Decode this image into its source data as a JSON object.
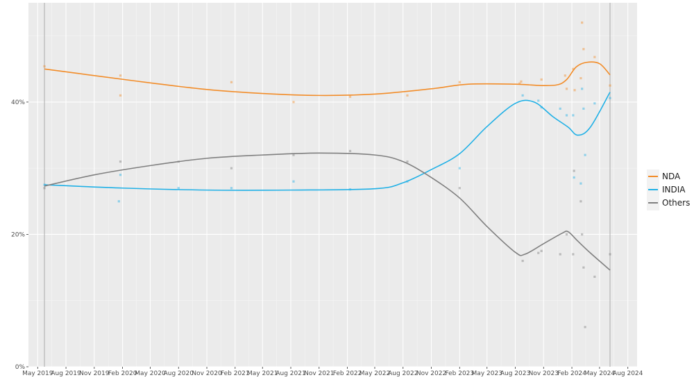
{
  "chart_data": {
    "type": "line",
    "title": "",
    "xlabel": "",
    "ylabel": "",
    "x_domain": [
      "2019-04-01",
      "2024-08-31"
    ],
    "ylim": [
      0,
      55
    ],
    "y_ticks": [
      {
        "value": 0,
        "label": "0%"
      },
      {
        "value": 20,
        "label": "20%"
      },
      {
        "value": 40,
        "label": "40%"
      }
    ],
    "x_ticks": [
      {
        "date": "2019-05-01",
        "label": "May 2019"
      },
      {
        "date": "2019-08-01",
        "label": "Aug 2019"
      },
      {
        "date": "2019-11-01",
        "label": "Nov 2019"
      },
      {
        "date": "2020-02-01",
        "label": "Feb 2020"
      },
      {
        "date": "2020-05-01",
        "label": "May 2020"
      },
      {
        "date": "2020-08-01",
        "label": "Aug 2020"
      },
      {
        "date": "2020-11-01",
        "label": "Nov 2020"
      },
      {
        "date": "2021-02-01",
        "label": "Feb 2021"
      },
      {
        "date": "2021-05-01",
        "label": "May 2021"
      },
      {
        "date": "2021-08-01",
        "label": "Aug 2021"
      },
      {
        "date": "2021-11-01",
        "label": "Nov 2021"
      },
      {
        "date": "2022-02-01",
        "label": "Feb 2022"
      },
      {
        "date": "2022-05-01",
        "label": "May 2022"
      },
      {
        "date": "2022-08-01",
        "label": "Aug 2022"
      },
      {
        "date": "2022-11-01",
        "label": "Nov 2022"
      },
      {
        "date": "2023-02-01",
        "label": "Feb 2023"
      },
      {
        "date": "2023-05-01",
        "label": "May 2023"
      },
      {
        "date": "2023-08-01",
        "label": "Aug 2023"
      },
      {
        "date": "2023-11-01",
        "label": "Nov 2023"
      },
      {
        "date": "2024-02-01",
        "label": "Feb 2024"
      },
      {
        "date": "2024-05-01",
        "label": "May 2024"
      },
      {
        "date": "2024-08-01",
        "label": "Aug 2024"
      }
    ],
    "grid": true,
    "legend_position": "right",
    "event_lines": [
      "2019-05-23",
      "2024-06-04"
    ],
    "series": [
      {
        "name": "NDA",
        "color": "#F28C28",
        "trend": [
          [
            "2019-05-23",
            45.0
          ],
          [
            "2019-11-01",
            44.0
          ],
          [
            "2020-05-01",
            42.9
          ],
          [
            "2020-11-01",
            41.9
          ],
          [
            "2021-05-01",
            41.3
          ],
          [
            "2021-11-01",
            41.0
          ],
          [
            "2022-05-01",
            41.2
          ],
          [
            "2022-11-01",
            42.0
          ],
          [
            "2023-03-01",
            42.7
          ],
          [
            "2023-08-01",
            42.7
          ],
          [
            "2023-10-20",
            42.5
          ],
          [
            "2023-12-15",
            42.6
          ],
          [
            "2024-01-15",
            43.4
          ],
          [
            "2024-02-15",
            45.3
          ],
          [
            "2024-03-20",
            46.0
          ],
          [
            "2024-05-01",
            45.8
          ],
          [
            "2024-06-04",
            44.1
          ]
        ],
        "points": [
          [
            "2019-05-23",
            45.4
          ],
          [
            "2020-01-25",
            44.0
          ],
          [
            "2020-01-25",
            41.0
          ],
          [
            "2021-01-20",
            43.0
          ],
          [
            "2021-08-10",
            40.0
          ],
          [
            "2022-02-10",
            40.8
          ],
          [
            "2022-08-15",
            41.0
          ],
          [
            "2023-02-01",
            43.0
          ],
          [
            "2023-08-15",
            42.8
          ],
          [
            "2023-08-20",
            43.1
          ],
          [
            "2023-10-25",
            43.4
          ],
          [
            "2024-01-10",
            44.0
          ],
          [
            "2024-01-15",
            42.0
          ],
          [
            "2024-02-05",
            45.0
          ],
          [
            "2024-02-10",
            41.8
          ],
          [
            "2024-03-01",
            43.6
          ],
          [
            "2024-03-05",
            52.0
          ],
          [
            "2024-03-10",
            48.0
          ],
          [
            "2024-04-15",
            46.8
          ],
          [
            "2024-06-04",
            42.5
          ]
        ]
      },
      {
        "name": "INDIA",
        "color": "#1FB0E6",
        "trend": [
          [
            "2019-05-23",
            27.5
          ],
          [
            "2020-02-01",
            27.0
          ],
          [
            "2020-11-01",
            26.7
          ],
          [
            "2021-08-01",
            26.7
          ],
          [
            "2022-05-01",
            26.9
          ],
          [
            "2022-08-01",
            27.8
          ],
          [
            "2022-11-01",
            29.8
          ],
          [
            "2023-02-01",
            32.2
          ],
          [
            "2023-05-01",
            36.3
          ],
          [
            "2023-08-01",
            39.8
          ],
          [
            "2023-10-01",
            40.0
          ],
          [
            "2023-12-01",
            37.8
          ],
          [
            "2024-01-20",
            36.2
          ],
          [
            "2024-02-20",
            35.0
          ],
          [
            "2024-04-01",
            36.2
          ],
          [
            "2024-06-04",
            41.5
          ]
        ],
        "points": [
          [
            "2019-05-23",
            27.5
          ],
          [
            "2020-01-20",
            25.0
          ],
          [
            "2020-01-25",
            29.0
          ],
          [
            "2020-08-01",
            27.0
          ],
          [
            "2021-01-20",
            27.0
          ],
          [
            "2021-08-10",
            28.0
          ],
          [
            "2022-02-10",
            26.8
          ],
          [
            "2022-08-15",
            28.0
          ],
          [
            "2023-02-01",
            30.0
          ],
          [
            "2023-08-25",
            41.0
          ],
          [
            "2023-10-15",
            40.2
          ],
          [
            "2023-10-25",
            39.2
          ],
          [
            "2023-12-25",
            39.0
          ],
          [
            "2024-01-15",
            38.0
          ],
          [
            "2024-02-05",
            38.0
          ],
          [
            "2024-02-08",
            28.6
          ],
          [
            "2024-03-01",
            27.7
          ],
          [
            "2024-03-05",
            42.0
          ],
          [
            "2024-03-10",
            39.0
          ],
          [
            "2024-03-15",
            32.0
          ],
          [
            "2024-04-15",
            39.8
          ],
          [
            "2024-06-04",
            40.6
          ]
        ]
      },
      {
        "name": "Others",
        "color": "#7F7F7F",
        "trend": [
          [
            "2019-05-23",
            27.3
          ],
          [
            "2019-11-01",
            29.0
          ],
          [
            "2020-05-01",
            30.4
          ],
          [
            "2020-11-01",
            31.5
          ],
          [
            "2021-05-01",
            32.0
          ],
          [
            "2021-11-01",
            32.3
          ],
          [
            "2022-05-01",
            32.0
          ],
          [
            "2022-08-01",
            31.0
          ],
          [
            "2022-11-01",
            28.6
          ],
          [
            "2023-02-01",
            25.5
          ],
          [
            "2023-05-01",
            21.2
          ],
          [
            "2023-08-01",
            17.3
          ],
          [
            "2023-09-01",
            17.0
          ],
          [
            "2023-11-01",
            18.6
          ],
          [
            "2024-01-01",
            20.2
          ],
          [
            "2024-01-20",
            20.4
          ],
          [
            "2024-02-20",
            19.0
          ],
          [
            "2024-04-01",
            17.2
          ],
          [
            "2024-06-04",
            14.6
          ]
        ],
        "points": [
          [
            "2019-05-23",
            27.0
          ],
          [
            "2020-01-25",
            31.0
          ],
          [
            "2020-08-01",
            31.0
          ],
          [
            "2021-01-20",
            30.0
          ],
          [
            "2021-08-10",
            32.0
          ],
          [
            "2022-02-10",
            32.6
          ],
          [
            "2022-08-15",
            31.0
          ],
          [
            "2023-02-01",
            27.0
          ],
          [
            "2023-08-25",
            16.0
          ],
          [
            "2023-10-15",
            17.2
          ],
          [
            "2023-10-25",
            17.5
          ],
          [
            "2023-12-25",
            17.0
          ],
          [
            "2024-01-15",
            20.0
          ],
          [
            "2024-02-05",
            17.0
          ],
          [
            "2024-02-08",
            29.6
          ],
          [
            "2024-03-01",
            25.0
          ],
          [
            "2024-03-05",
            20.0
          ],
          [
            "2024-03-10",
            15.0
          ],
          [
            "2024-03-15",
            6.0
          ],
          [
            "2024-04-15",
            13.6
          ],
          [
            "2024-06-04",
            17.0
          ]
        ]
      }
    ]
  }
}
